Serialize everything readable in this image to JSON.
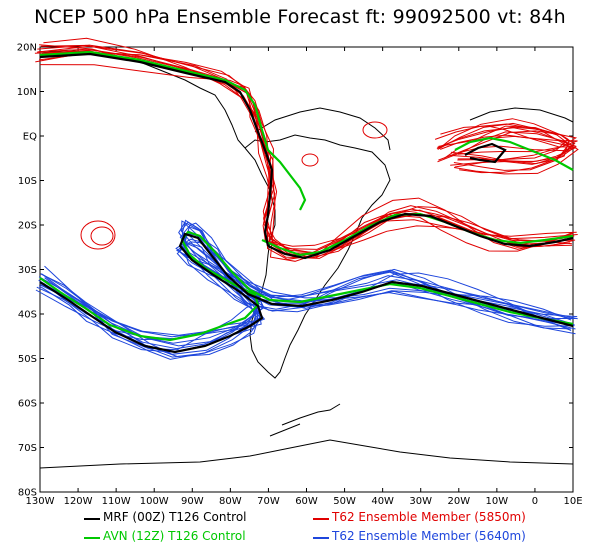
{
  "title": "NCEP 500 hPa Ensemble Forecast   ft: 99092500  vt: 84h",
  "lat_labels": [
    "20N",
    "10N",
    "EQ",
    "10S",
    "20S",
    "30S",
    "40S",
    "50S",
    "60S",
    "70S",
    "80S"
  ],
  "lon_labels": [
    "130W",
    "120W",
    "110W",
    "100W",
    "90W",
    "80W",
    "70W",
    "60W",
    "50W",
    "40W",
    "30W",
    "20W",
    "10W",
    "0",
    "10E"
  ],
  "legend": [
    {
      "label": "MRF (00Z) T126 Control",
      "color": "#000000"
    },
    {
      "label": "AVN (12Z) T126 Control",
      "color": "#00c800"
    },
    {
      "label": "T62 Ensemble Member (5850m)",
      "color": "#e00000"
    },
    {
      "label": "T62 Ensemble Member (5640m)",
      "color": "#1e46dc"
    }
  ],
  "colors": {
    "mrf": "#000000",
    "avn": "#00c800",
    "red_members": "#e00000",
    "blue_members": "#1e46dc",
    "coast": "#000000"
  }
}
